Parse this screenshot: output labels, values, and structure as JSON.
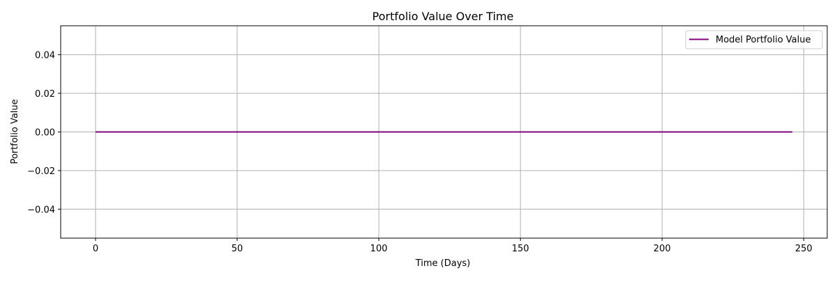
{
  "chart_data": {
    "type": "line",
    "title": "Portfolio Value Over Time",
    "xlabel": "Time (Days)",
    "ylabel": "Portfolio Value",
    "xlim": [
      -12.3,
      258.3
    ],
    "ylim": [
      -0.055,
      0.055
    ],
    "x_ticks": [
      0,
      50,
      100,
      150,
      200,
      250
    ],
    "x_tick_labels": [
      "0",
      "50",
      "100",
      "150",
      "200",
      "250"
    ],
    "y_ticks": [
      -0.04,
      -0.02,
      0.0,
      0.02,
      0.04
    ],
    "y_tick_labels": [
      "−0.04",
      "−0.02",
      "0.00",
      "0.02",
      "0.04"
    ],
    "grid": true,
    "legend_position": "top-right",
    "series": [
      {
        "name": "Model Portfolio Value",
        "color": "#800080",
        "x": [
          0,
          246
        ],
        "y": [
          0.0,
          0.0
        ]
      }
    ]
  }
}
